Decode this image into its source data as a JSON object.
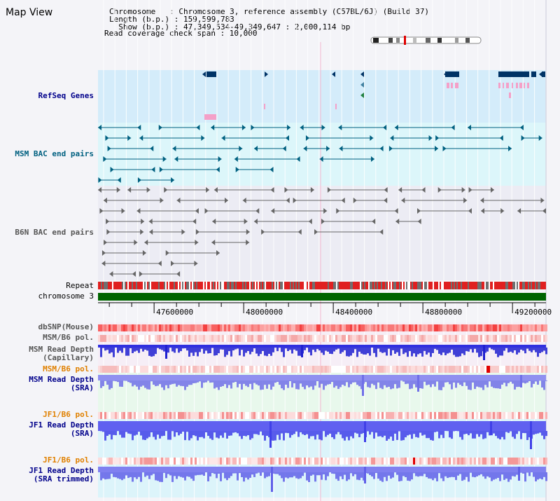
{
  "title": "Map View",
  "info": {
    "chromosome": "Chromosome   : Chromosome 3, reference assembly (C57BL/6J) (Build 37)",
    "length": "Length (b.p.) : 159,599,783",
    "show": "  Show (b.p.) : 47,349,534-49,349,647 : 2,000,114 bp",
    "span": "Read coverage check span : 10,000"
  },
  "region": {
    "start": 47349534,
    "end": 49349647
  },
  "axis": {
    "ticks": [
      "47600000",
      "48000000",
      "48400000",
      "48800000",
      "49200000"
    ]
  },
  "tracks": {
    "refseq": "RefSeq Genes",
    "msm_bac": "MSM BAC end pairs",
    "b6n_bac": "B6N BAC end pairs",
    "repeat": "Repeat",
    "chromosome": "chromosome 3",
    "dbsnp": "dbSNP(Mouse)",
    "msm_b6_pol": "MSM/B6 pol.",
    "msm_depth_cap": "MSM Read Depth\n(Capillary)",
    "msm_b6_pol2": "MSM/B6 pol.",
    "msm_depth_sra": "MSM Read Depth\n(SRA)",
    "jf1_b6_pol": "JF1/B6 pol.",
    "jf1_depth_sra": "JF1 Read Depth\n(SRA)",
    "jf1_b6_pol2": "JF1/B6 pol.",
    "jf1_depth_trim": "JF1 Read Depth\n(SRA trimmed)"
  },
  "colors": {
    "refseq_bg": "#d4ecfa",
    "bac_bg": "#dcf6fa",
    "gene": "#003366",
    "gene_pink": "#f4a0c8",
    "msm_bac": "#006080",
    "b6n_bac": "#666666",
    "repeat_red": "#e02020",
    "repeat_grey": "#707070",
    "chromosome": "#006400",
    "depth_blue": "#2020e0",
    "depth_light": "#8080f0"
  },
  "icons": [
    "ideogram-icon"
  ]
}
